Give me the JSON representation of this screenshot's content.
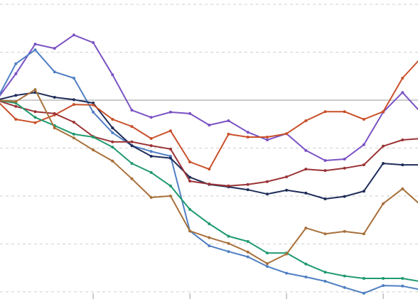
{
  "chart_data": {
    "type": "line",
    "x": [
      0,
      1,
      2,
      3,
      4,
      5,
      6,
      7,
      8,
      9,
      10,
      11,
      12,
      13,
      14,
      15,
      16,
      17,
      18,
      19,
      20,
      21,
      22
    ],
    "xlim": [
      0.18,
      21.8
    ],
    "xticks": [
      5,
      10,
      15,
      20
    ],
    "ylim": [
      -41.5,
      20.9
    ],
    "yticks": [
      -40,
      -30,
      -20,
      -10,
      0,
      10,
      20
    ],
    "grid": true,
    "baseline": 0,
    "series": [
      {
        "color": "#7b52c4",
        "values": [
          0,
          5.5,
          11.7,
          10.8,
          13.6,
          12.0,
          5.3,
          -2.1,
          -3.6,
          -2.5,
          -2.8,
          -5.2,
          -4.3,
          -6.7,
          -8.3,
          -7.0,
          -10.5,
          -12.6,
          -12.3,
          -9.3,
          -2.5,
          1.6,
          -2.8
        ]
      },
      {
        "color": "#4f7fc2",
        "values": [
          0,
          7.6,
          10.5,
          5.9,
          4.6,
          -2.5,
          -6.8,
          -9.5,
          -10.7,
          -11.7,
          -27.3,
          -30.4,
          -31.6,
          -32.7,
          -34.7,
          -36.1,
          -36.9,
          -37.8,
          -39.1,
          -40.3,
          -38.7,
          -38.8,
          -39.6
        ]
      },
      {
        "color": "#1f2d5a",
        "values": [
          0,
          1.0,
          1.6,
          0.6,
          0.1,
          -0.6,
          -5.8,
          -9.5,
          -11.7,
          -12.1,
          -16.1,
          -17.6,
          -18.1,
          -18.7,
          -19.6,
          -18.8,
          -19.4,
          -20.6,
          -20.1,
          -19.0,
          -13.2,
          -13.5,
          -13.5
        ]
      },
      {
        "color": "#c9502a",
        "values": [
          0,
          -4.0,
          -4.7,
          -3.1,
          -0.9,
          -1.0,
          -4.0,
          -5.5,
          -8.0,
          -6.4,
          -12.9,
          -14.4,
          -7.1,
          -7.7,
          -7.7,
          -7.0,
          -4.3,
          -2.4,
          -2.4,
          -4.0,
          -2.4,
          4.6,
          9.0
        ]
      },
      {
        "color": "#9b3335",
        "values": [
          0,
          -1.3,
          -2.4,
          -2.8,
          -4.6,
          -7.6,
          -8.7,
          -8.7,
          -9.5,
          -10.2,
          -16.9,
          -17.5,
          -17.9,
          -17.6,
          -17.0,
          -16.0,
          -14.4,
          -14.7,
          -14.2,
          -13.5,
          -9.6,
          -8.3,
          -8.0
        ]
      },
      {
        "color": "#1f9a6e",
        "values": [
          0,
          -0.6,
          -3.6,
          -5.3,
          -7.1,
          -7.7,
          -9.8,
          -13.2,
          -15.1,
          -17.9,
          -22.8,
          -25.8,
          -28.4,
          -29.5,
          -31.9,
          -31.9,
          -34.2,
          -35.9,
          -36.7,
          -37.2,
          -37.2,
          -37.2,
          -37.9
        ]
      },
      {
        "color": "#a8703a",
        "values": [
          0,
          -0.3,
          2.2,
          -5.8,
          -7.9,
          -10.4,
          -12.7,
          -16.4,
          -20.3,
          -20.0,
          -27.3,
          -28.7,
          -29.9,
          -31.7,
          -34.1,
          -32.1,
          -26.7,
          -27.9,
          -27.4,
          -27.9,
          -21.6,
          -18.5,
          -22.1
        ]
      }
    ]
  }
}
